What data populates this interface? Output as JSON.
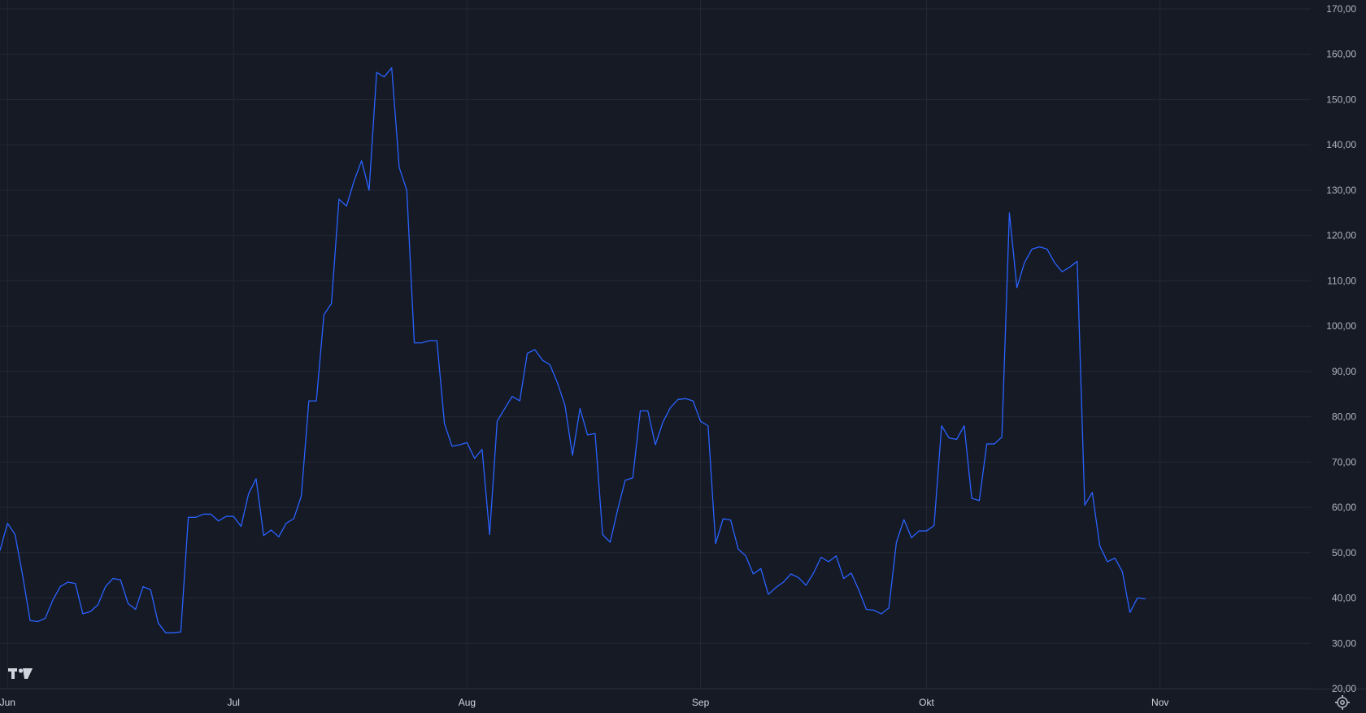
{
  "chart_data": {
    "type": "line",
    "title": "",
    "xlabel": "",
    "ylabel": "",
    "grid": true,
    "y_axis_position": "right",
    "ylim": [
      20,
      170
    ],
    "y_ticks": [
      20,
      30,
      40,
      50,
      60,
      70,
      80,
      90,
      100,
      110,
      120,
      130,
      140,
      150,
      160,
      170
    ],
    "y_tick_labels": [
      "20,00",
      "30,00",
      "40,00",
      "50,00",
      "60,00",
      "70,00",
      "80,00",
      "90,00",
      "100,00",
      "110,00",
      "120,00",
      "130,00",
      "140,00",
      "150,00",
      "160,00",
      "170,00"
    ],
    "x_tick_labels": [
      "Jun",
      "Jul",
      "Aug",
      "Sep",
      "Okt",
      "Nov"
    ],
    "x_tick_dates": [
      "2024-06-01",
      "2024-07-01",
      "2024-08-01",
      "2024-09-01",
      "2024-10-01",
      "2024-11-01"
    ],
    "xlim": [
      "2024-05-31",
      "2024-11-21"
    ],
    "colors": {
      "line": "#2962ff",
      "background": "#161a25",
      "grid": "#242836",
      "text": "#b2b5be"
    },
    "series": [
      {
        "name": "",
        "points": [
          [
            "2024-05-31",
            50.5
          ],
          [
            "2024-06-01",
            56.5
          ],
          [
            "2024-06-02",
            54.0
          ],
          [
            "2024-06-03",
            45.0
          ],
          [
            "2024-06-04",
            35.0
          ],
          [
            "2024-06-05",
            34.8
          ],
          [
            "2024-06-06",
            35.5
          ],
          [
            "2024-06-07",
            39.5
          ],
          [
            "2024-06-08",
            42.5
          ],
          [
            "2024-06-09",
            43.5
          ],
          [
            "2024-06-10",
            43.2
          ],
          [
            "2024-06-11",
            36.5
          ],
          [
            "2024-06-12",
            37.0
          ],
          [
            "2024-06-13",
            38.5
          ],
          [
            "2024-06-14",
            42.5
          ],
          [
            "2024-06-15",
            44.3
          ],
          [
            "2024-06-16",
            44.0
          ],
          [
            "2024-06-17",
            38.8
          ],
          [
            "2024-06-18",
            37.5
          ],
          [
            "2024-06-19",
            42.5
          ],
          [
            "2024-06-20",
            41.8
          ],
          [
            "2024-06-21",
            34.5
          ],
          [
            "2024-06-22",
            32.3
          ],
          [
            "2024-06-23",
            32.3
          ],
          [
            "2024-06-24",
            32.5
          ],
          [
            "2024-06-25",
            57.8
          ],
          [
            "2024-06-26",
            57.8
          ],
          [
            "2024-06-27",
            58.5
          ],
          [
            "2024-06-28",
            58.5
          ],
          [
            "2024-06-29",
            57.0
          ],
          [
            "2024-06-30",
            58.0
          ],
          [
            "2024-07-01",
            58.0
          ],
          [
            "2024-07-02",
            55.8
          ],
          [
            "2024-07-03",
            63.0
          ],
          [
            "2024-07-04",
            66.3
          ],
          [
            "2024-07-05",
            53.8
          ],
          [
            "2024-07-06",
            55.0
          ],
          [
            "2024-07-07",
            53.5
          ],
          [
            "2024-07-08",
            56.5
          ],
          [
            "2024-07-09",
            57.5
          ],
          [
            "2024-07-10",
            62.5
          ],
          [
            "2024-07-11",
            83.5
          ],
          [
            "2024-07-12",
            83.5
          ],
          [
            "2024-07-13",
            102.5
          ],
          [
            "2024-07-14",
            105.0
          ],
          [
            "2024-07-15",
            128.0
          ],
          [
            "2024-07-16",
            126.5
          ],
          [
            "2024-07-17",
            132.0
          ],
          [
            "2024-07-18",
            136.5
          ],
          [
            "2024-07-19",
            130.0
          ],
          [
            "2024-07-20",
            156.0
          ],
          [
            "2024-07-21",
            155.0
          ],
          [
            "2024-07-22",
            157.0
          ],
          [
            "2024-07-23",
            135.0
          ],
          [
            "2024-07-24",
            130.0
          ],
          [
            "2024-07-25",
            96.3
          ],
          [
            "2024-07-26",
            96.3
          ],
          [
            "2024-07-27",
            96.8
          ],
          [
            "2024-07-28",
            96.8
          ],
          [
            "2024-07-29",
            78.5
          ],
          [
            "2024-07-30",
            73.5
          ],
          [
            "2024-07-31",
            73.8
          ],
          [
            "2024-08-01",
            74.3
          ],
          [
            "2024-08-02",
            70.8
          ],
          [
            "2024-08-03",
            72.8
          ],
          [
            "2024-08-04",
            54.0
          ],
          [
            "2024-08-05",
            79.0
          ],
          [
            "2024-08-06",
            81.8
          ],
          [
            "2024-08-07",
            84.5
          ],
          [
            "2024-08-08",
            83.5
          ],
          [
            "2024-08-09",
            94.0
          ],
          [
            "2024-08-10",
            94.8
          ],
          [
            "2024-08-11",
            92.5
          ],
          [
            "2024-08-12",
            91.5
          ],
          [
            "2024-08-13",
            87.5
          ],
          [
            "2024-08-14",
            82.5
          ],
          [
            "2024-08-15",
            71.5
          ],
          [
            "2024-08-16",
            81.8
          ],
          [
            "2024-08-17",
            76.0
          ],
          [
            "2024-08-18",
            76.3
          ],
          [
            "2024-08-19",
            54.0
          ],
          [
            "2024-08-20",
            52.3
          ],
          [
            "2024-08-21",
            59.5
          ],
          [
            "2024-08-22",
            66.0
          ],
          [
            "2024-08-23",
            66.5
          ],
          [
            "2024-08-24",
            81.3
          ],
          [
            "2024-08-25",
            81.3
          ],
          [
            "2024-08-26",
            73.8
          ],
          [
            "2024-08-27",
            78.8
          ],
          [
            "2024-08-28",
            82.0
          ],
          [
            "2024-08-29",
            83.8
          ],
          [
            "2024-08-30",
            84.0
          ],
          [
            "2024-08-31",
            83.5
          ],
          [
            "2024-09-01",
            79.0
          ],
          [
            "2024-09-02",
            78.0
          ],
          [
            "2024-09-03",
            52.0
          ],
          [
            "2024-09-04",
            57.5
          ],
          [
            "2024-09-05",
            57.2
          ],
          [
            "2024-09-06",
            50.8
          ],
          [
            "2024-09-07",
            49.3
          ],
          [
            "2024-09-08",
            45.3
          ],
          [
            "2024-09-09",
            46.5
          ],
          [
            "2024-09-10",
            40.8
          ],
          [
            "2024-09-11",
            42.3
          ],
          [
            "2024-09-12",
            43.5
          ],
          [
            "2024-09-13",
            45.3
          ],
          [
            "2024-09-14",
            44.5
          ],
          [
            "2024-09-15",
            42.8
          ],
          [
            "2024-09-16",
            45.5
          ],
          [
            "2024-09-17",
            49.0
          ],
          [
            "2024-09-18",
            48.0
          ],
          [
            "2024-09-19",
            49.3
          ],
          [
            "2024-09-20",
            44.3
          ],
          [
            "2024-09-21",
            45.5
          ],
          [
            "2024-09-22",
            41.8
          ],
          [
            "2024-09-23",
            37.5
          ],
          [
            "2024-09-24",
            37.3
          ],
          [
            "2024-09-25",
            36.5
          ],
          [
            "2024-09-26",
            37.8
          ],
          [
            "2024-09-27",
            52.3
          ],
          [
            "2024-09-28",
            57.3
          ],
          [
            "2024-09-29",
            53.3
          ],
          [
            "2024-09-30",
            54.8
          ],
          [
            "2024-10-01",
            54.8
          ],
          [
            "2024-10-02",
            56.0
          ],
          [
            "2024-10-03",
            78.0
          ],
          [
            "2024-10-04",
            75.3
          ],
          [
            "2024-10-05",
            75.0
          ],
          [
            "2024-10-06",
            78.0
          ],
          [
            "2024-10-07",
            62.0
          ],
          [
            "2024-10-08",
            61.5
          ],
          [
            "2024-10-09",
            74.0
          ],
          [
            "2024-10-10",
            74.0
          ],
          [
            "2024-10-11",
            75.5
          ],
          [
            "2024-10-12",
            125.0
          ],
          [
            "2024-10-13",
            108.5
          ],
          [
            "2024-10-14",
            114.0
          ],
          [
            "2024-10-15",
            117.0
          ],
          [
            "2024-10-16",
            117.5
          ],
          [
            "2024-10-17",
            117.0
          ],
          [
            "2024-10-18",
            114.0
          ],
          [
            "2024-10-19",
            112.0
          ],
          [
            "2024-10-20",
            113.0
          ],
          [
            "2024-10-21",
            114.3
          ],
          [
            "2024-10-22",
            60.5
          ],
          [
            "2024-10-23",
            63.3
          ],
          [
            "2024-10-24",
            51.5
          ],
          [
            "2024-10-25",
            48.0
          ],
          [
            "2024-10-26",
            48.8
          ],
          [
            "2024-10-27",
            45.8
          ],
          [
            "2024-10-28",
            36.8
          ],
          [
            "2024-10-29",
            40.0
          ],
          [
            "2024-10-30",
            39.8
          ]
        ]
      }
    ]
  },
  "ui": {
    "logo_text": "TV",
    "settings_icon": "gear-icon"
  }
}
